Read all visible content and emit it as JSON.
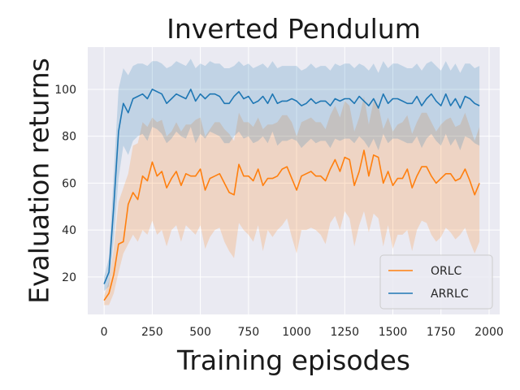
{
  "chart_data": {
    "type": "line",
    "title": "Inverted Pendulum",
    "xlabel": "Training episodes",
    "ylabel": "Evaluation returns",
    "xlim": [
      -85,
      2055
    ],
    "ylim": [
      4,
      118
    ],
    "xticks": [
      0,
      250,
      500,
      750,
      1000,
      1250,
      1500,
      1750,
      2000
    ],
    "yticks": [
      20,
      40,
      60,
      80,
      100
    ],
    "grid": true,
    "legend_position": "lower-right",
    "x": [
      0,
      25,
      50,
      75,
      100,
      125,
      150,
      175,
      200,
      225,
      250,
      275,
      300,
      325,
      350,
      375,
      400,
      425,
      450,
      475,
      500,
      525,
      550,
      575,
      600,
      625,
      650,
      675,
      700,
      725,
      750,
      775,
      800,
      825,
      850,
      875,
      900,
      925,
      950,
      975,
      1000,
      1025,
      1050,
      1075,
      1100,
      1125,
      1150,
      1175,
      1200,
      1225,
      1250,
      1275,
      1300,
      1325,
      1350,
      1375,
      1400,
      1425,
      1450,
      1475,
      1500,
      1525,
      1550,
      1575,
      1600,
      1625,
      1650,
      1675,
      1700,
      1725,
      1750,
      1775,
      1800,
      1825,
      1850,
      1875,
      1900,
      1925,
      1950
    ],
    "series": [
      {
        "name": "ORLC",
        "color": "#ff7f0e",
        "values": [
          10,
          13,
          21,
          34,
          35,
          51,
          56,
          53,
          63,
          61,
          69,
          63,
          65,
          58,
          62,
          65,
          59,
          64,
          63,
          63,
          66,
          57,
          62,
          63,
          64,
          60,
          56,
          55,
          68,
          63,
          63,
          61,
          66,
          59,
          62,
          62,
          63,
          66,
          67,
          62,
          57,
          63,
          64,
          65,
          63,
          63,
          61,
          66,
          70,
          65,
          71,
          70,
          59,
          65,
          74,
          63,
          72,
          71,
          60,
          65,
          59,
          62,
          62,
          66,
          58,
          63,
          67,
          67,
          63,
          60,
          62,
          64,
          64,
          61,
          62,
          66,
          61,
          55,
          60
        ],
        "lower": [
          8,
          8,
          13,
          22,
          30,
          34,
          38,
          35,
          40,
          38,
          44,
          38,
          40,
          33,
          40,
          42,
          35,
          42,
          40,
          38,
          42,
          32,
          37,
          40,
          41,
          35,
          31,
          28,
          43,
          40,
          38,
          35,
          42,
          31,
          40,
          37,
          40,
          42,
          45,
          37,
          30,
          40,
          40,
          41,
          40,
          38,
          34,
          43,
          46,
          40,
          48,
          45,
          33,
          42,
          48,
          39,
          47,
          45,
          33,
          42,
          32,
          38,
          38,
          40,
          31,
          40,
          44,
          43,
          38,
          35,
          37,
          41,
          39,
          36,
          38,
          41,
          35,
          30,
          35
        ],
        "upper": [
          12,
          18,
          32,
          52,
          58,
          64,
          76,
          77,
          86,
          84,
          88,
          86,
          87,
          80,
          82,
          86,
          82,
          85,
          85,
          87,
          88,
          80,
          83,
          86,
          86,
          83,
          81,
          78,
          90,
          86,
          86,
          84,
          88,
          83,
          85,
          85,
          86,
          89,
          89,
          86,
          80,
          86,
          87,
          88,
          86,
          86,
          83,
          89,
          93,
          88,
          95,
          93,
          82,
          88,
          97,
          85,
          95,
          93,
          83,
          88,
          82,
          85,
          86,
          89,
          81,
          86,
          90,
          90,
          86,
          82,
          85,
          87,
          88,
          84,
          85,
          90,
          84,
          78,
          84
        ]
      },
      {
        "name": "ARRLC",
        "color": "#1f77b4",
        "values": [
          17,
          22,
          50,
          82,
          94,
          90,
          96,
          97,
          98,
          96,
          100,
          99,
          98,
          94,
          96,
          98,
          97,
          96,
          100,
          95,
          98,
          96,
          98,
          98,
          97,
          94,
          94,
          97,
          99,
          96,
          97,
          94,
          95,
          97,
          94,
          98,
          94,
          95,
          95,
          96,
          95,
          93,
          94,
          96,
          94,
          95,
          95,
          93,
          96,
          95,
          96,
          96,
          94,
          97,
          95,
          93,
          96,
          92,
          98,
          94,
          96,
          96,
          95,
          94,
          94,
          97,
          93,
          96,
          98,
          95,
          93,
          98,
          93,
          96,
          92,
          97,
          96,
          94,
          93
        ],
        "lower": [
          14,
          16,
          36,
          62,
          76,
          72,
          78,
          80,
          81,
          78,
          84,
          83,
          81,
          77,
          79,
          82,
          80,
          79,
          84,
          77,
          81,
          79,
          82,
          81,
          80,
          77,
          77,
          80,
          82,
          79,
          80,
          77,
          78,
          80,
          77,
          82,
          76,
          78,
          78,
          79,
          78,
          75,
          77,
          79,
          77,
          78,
          78,
          75,
          79,
          78,
          79,
          79,
          77,
          80,
          78,
          75,
          79,
          74,
          81,
          77,
          79,
          79,
          78,
          77,
          77,
          80,
          75,
          79,
          81,
          78,
          76,
          81,
          76,
          79,
          74,
          80,
          79,
          77,
          76
        ],
        "upper": [
          20,
          28,
          64,
          100,
          109,
          106,
          110,
          111,
          111,
          110,
          112,
          112,
          111,
          109,
          110,
          112,
          111,
          110,
          113,
          109,
          111,
          110,
          112,
          111,
          111,
          109,
          109,
          110,
          112,
          110,
          111,
          109,
          110,
          111,
          109,
          112,
          109,
          110,
          110,
          110,
          110,
          108,
          109,
          111,
          109,
          110,
          110,
          108,
          111,
          110,
          111,
          111,
          109,
          111,
          110,
          108,
          111,
          107,
          112,
          109,
          111,
          111,
          110,
          109,
          109,
          111,
          108,
          111,
          112,
          110,
          108,
          112,
          108,
          111,
          107,
          111,
          111,
          109,
          110
        ]
      }
    ]
  }
}
